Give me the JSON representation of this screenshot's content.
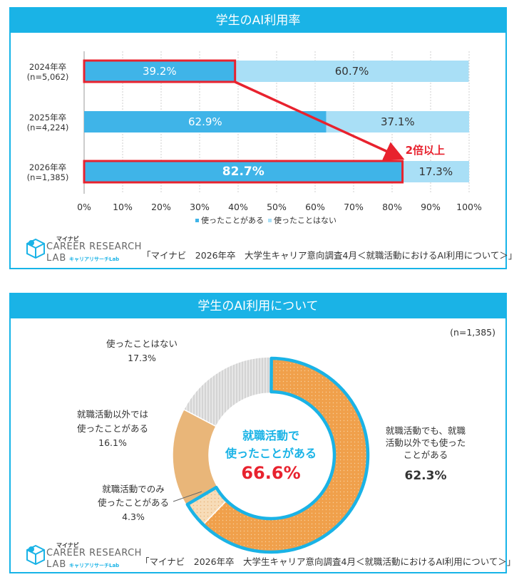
{
  "chart1": {
    "title": "学生のAI利用率",
    "chart_data": {
      "type": "bar",
      "orientation": "horizontal",
      "stacked": true,
      "categories": [
        "2024年卒\n(n=5,062)",
        "2025年卒\n(n=4,224)",
        "2026年卒\n(n=1,385)"
      ],
      "series": [
        {
          "name": "使ったことがある",
          "values": [
            39.2,
            62.9,
            82.7
          ],
          "labels": [
            "39.2%",
            "62.9%",
            "82.7%"
          ],
          "color": "#3fb4e8"
        },
        {
          "name": "使ったことはない",
          "values": [
            60.7,
            37.1,
            17.3
          ],
          "labels": [
            "60.7%",
            "37.1%",
            "17.3%"
          ],
          "color": "#a9dff6"
        }
      ],
      "xlim": [
        0,
        100
      ],
      "x_ticks": [
        "0%",
        "10%",
        "20%",
        "30%",
        "40%",
        "50%",
        "60%",
        "70%",
        "80%",
        "90%",
        "100%"
      ],
      "grid": true,
      "legend": "bottom",
      "annotation": "2倍以上",
      "highlighted_categories": [
        "2024年卒\n(n=5,062)",
        "2026年卒\n(n=1,385)"
      ]
    },
    "source": "「マイナビ　2026年卒　大学生キャリア意向調査4月＜就職活動におけるAI利用について＞」"
  },
  "chart2": {
    "title": "学生のAI利用について",
    "n_label": "(n=1,385)",
    "center_line1": "就職活動で",
    "center_line2": "使ったことがある",
    "center_value": "66.6%",
    "chart_data": {
      "type": "pie",
      "donut": true,
      "slices": [
        {
          "label": "就職活動でも、就職活動以外でも使ったことがある",
          "value": 62.3,
          "display": "62.3%",
          "color": "#f0a04b"
        },
        {
          "label": "就職活動でのみ使ったことがある",
          "value": 4.3,
          "display": "4.3%",
          "color": "#f4d2a8"
        },
        {
          "label": "就職活動以外では使ったことがある",
          "value": 16.1,
          "display": "16.1%",
          "color": "#e9b679"
        },
        {
          "label": "使ったことはない",
          "value": 17.3,
          "display": "17.3%",
          "color": "#d9d9d9"
        }
      ]
    },
    "labels": {
      "s1_lines": [
        "就職活動でも、就職",
        "活動以外でも使った",
        "ことがある"
      ],
      "s1_value": "62.3%",
      "s2_lines": [
        "就職活動でのみ",
        "使ったことがある"
      ],
      "s2_value": "4.3%",
      "s3_lines": [
        "就職活動以外では",
        "使ったことがある"
      ],
      "s3_value": "16.1%",
      "s4_lines": [
        "使ったことはない"
      ],
      "s4_value": "17.3%"
    },
    "source": "「マイナビ　2026年卒　大学生キャリア意向調査4月＜就職活動におけるAI利用について＞」"
  },
  "logo": {
    "brand_small": "マイナビ",
    "brand_main": "CAREER RESEARCH",
    "brand_lab": "LAB",
    "brand_sub": "キャリアリサーチLab"
  },
  "colors": {
    "accent": "#1ab3e6",
    "highlight_red": "#e8222e"
  }
}
